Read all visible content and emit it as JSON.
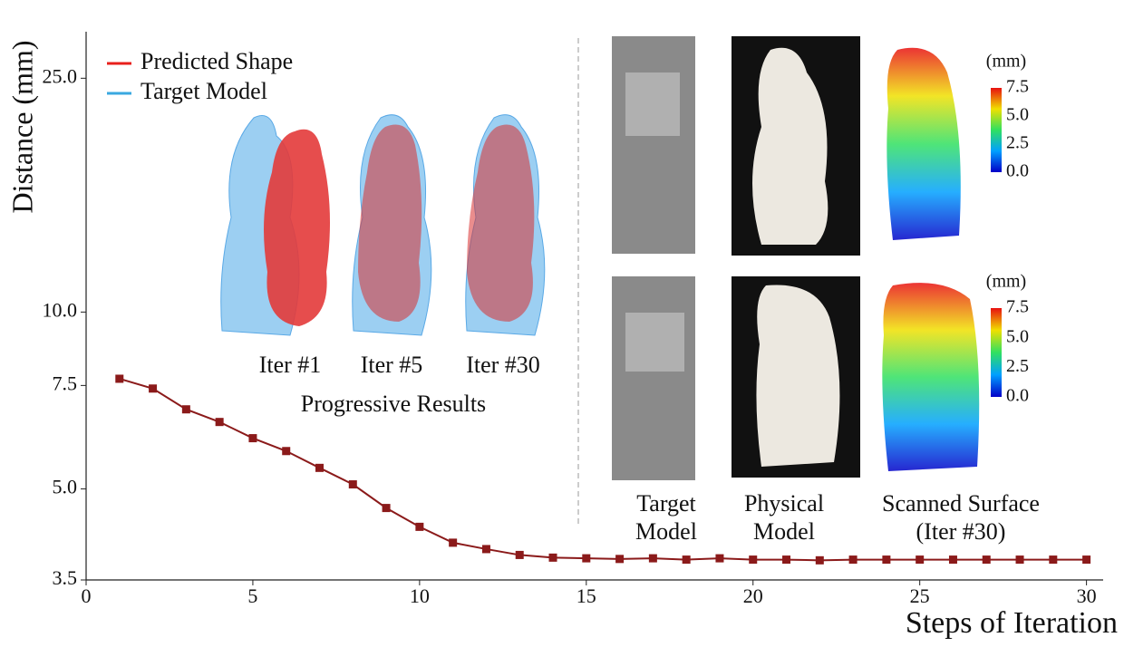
{
  "chart_data": {
    "type": "line",
    "xlabel": "Steps of Iteration",
    "ylabel": "Distance (mm)",
    "x": [
      1,
      2,
      3,
      4,
      5,
      6,
      7,
      8,
      9,
      10,
      11,
      12,
      13,
      14,
      15,
      16,
      17,
      18,
      19,
      20,
      21,
      22,
      23,
      24,
      25,
      26,
      27,
      28,
      29,
      30
    ],
    "series": [
      {
        "color": "#8b1a1a",
        "values": [
          7.7,
          7.41,
          6.83,
          6.5,
          6.1,
          5.8,
          5.43,
          5.09,
          4.64,
          4.31,
          4.05,
          3.95,
          3.86,
          3.82,
          3.81,
          3.8,
          3.81,
          3.79,
          3.81,
          3.79,
          3.79,
          3.78,
          3.79,
          3.79,
          3.79,
          3.79,
          3.79,
          3.79,
          3.79,
          3.79
        ]
      }
    ],
    "xlim": [
      0,
      30.5
    ],
    "xticks": [
      0,
      5,
      10,
      15,
      20,
      25,
      30
    ],
    "ylim": [
      3.5,
      30
    ],
    "yscale": "log",
    "yticks": [
      3.5,
      {
        "value": 5,
        "label": "5.0"
      },
      7.5,
      {
        "value": 10,
        "label": "10.0"
      },
      {
        "value": 25,
        "label": "25.0"
      }
    ],
    "grid": false
  },
  "insets": {
    "legend": [
      {
        "name": "Predicted Shape",
        "color": "#e8201c"
      },
      {
        "name": "Target Model",
        "color": "#3aa8e0"
      }
    ],
    "iterations": [
      "Iter #1",
      "Iter #5",
      "Iter #30"
    ],
    "progressive_caption": "Progressive Results",
    "columns": [
      "Target Model",
      "Physical Model",
      "Scanned Surface (Iter #30)"
    ],
    "colorbar": {
      "label": "(mm)",
      "clim": [
        0,
        7.5
      ],
      "ticks": [
        {
          "value": 0,
          "label": "0.0"
        },
        {
          "value": 2.5,
          "label": "2.5"
        },
        {
          "value": 5,
          "label": "5.0"
        },
        7.5
      ]
    }
  }
}
